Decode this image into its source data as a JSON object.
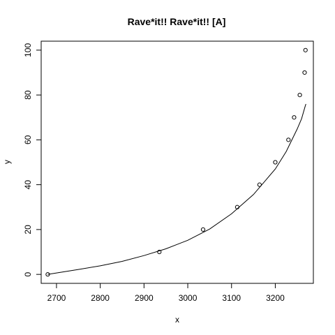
{
  "chart_data": {
    "type": "scatter",
    "title": "Rave*it!! Rave*it!! [A]",
    "xlabel": "x",
    "ylabel": "y",
    "xlim": [
      2665,
      3287
    ],
    "ylim": [
      -4,
      104
    ],
    "x_ticks": [
      2700,
      2800,
      2900,
      3000,
      3100,
      3200
    ],
    "y_ticks": [
      0,
      20,
      40,
      60,
      80,
      100
    ],
    "grid": false,
    "points": [
      {
        "x": 2680,
        "y": 0
      },
      {
        "x": 2935,
        "y": 10
      },
      {
        "x": 3035,
        "y": 20
      },
      {
        "x": 3113,
        "y": 30
      },
      {
        "x": 3164,
        "y": 40
      },
      {
        "x": 3200,
        "y": 50
      },
      {
        "x": 3230,
        "y": 60
      },
      {
        "x": 3243,
        "y": 70
      },
      {
        "x": 3256,
        "y": 80
      },
      {
        "x": 3267,
        "y": 90
      },
      {
        "x": 3269,
        "y": 100
      }
    ],
    "fit_line": [
      {
        "x": 2680,
        "y": 0
      },
      {
        "x": 2750,
        "y": 2.2
      },
      {
        "x": 2800,
        "y": 3.8
      },
      {
        "x": 2850,
        "y": 5.8
      },
      {
        "x": 2900,
        "y": 8.4
      },
      {
        "x": 2950,
        "y": 11.4
      },
      {
        "x": 3000,
        "y": 15.2
      },
      {
        "x": 3050,
        "y": 20.2
      },
      {
        "x": 3100,
        "y": 27.0
      },
      {
        "x": 3150,
        "y": 35.6
      },
      {
        "x": 3200,
        "y": 47.0
      },
      {
        "x": 3225,
        "y": 54.8
      },
      {
        "x": 3250,
        "y": 64.8
      },
      {
        "x": 3260,
        "y": 69.4
      },
      {
        "x": 3268,
        "y": 74.8
      },
      {
        "x": 3270,
        "y": 76.0
      }
    ]
  }
}
